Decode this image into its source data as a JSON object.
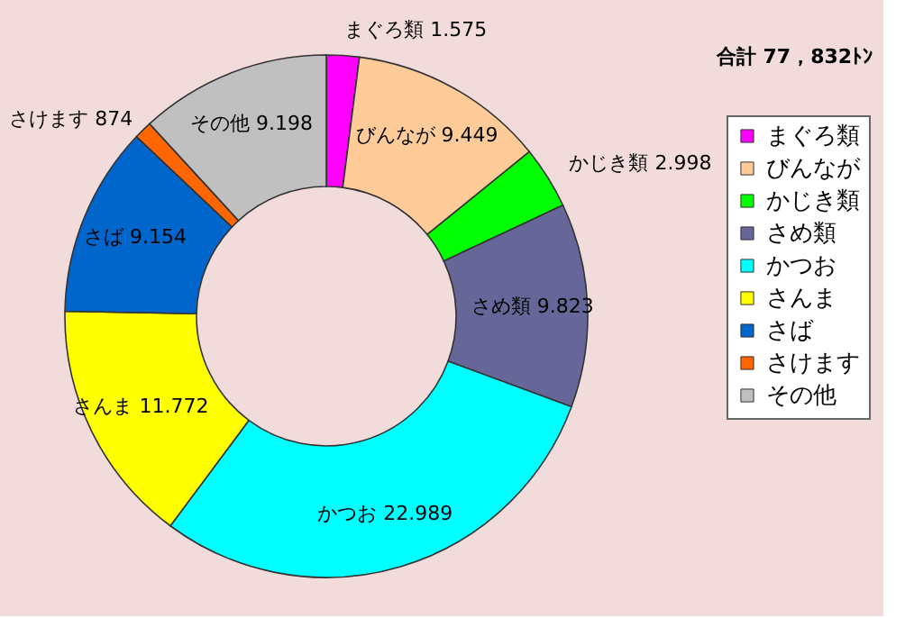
{
  "chart_data": {
    "type": "donut",
    "categories": [
      "まぐろ類",
      "びんなが",
      "かじき類",
      "さめ類",
      "かつお",
      "さんま",
      "さば",
      "さけます",
      "その他"
    ],
    "values": [
      1575,
      9449,
      2998,
      9823,
      22989,
      11772,
      9154,
      874,
      9198
    ],
    "value_labels": [
      "1.575",
      "9.449",
      "2.998",
      "9.823",
      "22.989",
      "11.772",
      "9.154",
      "874",
      "9.198"
    ],
    "colors": [
      "#ff00ff",
      "#ffcc99",
      "#00ff00",
      "#666699",
      "#00ffff",
      "#ffff00",
      "#0066cc",
      "#ff6600",
      "#c0c0c0"
    ],
    "annotations": [
      "合計 77，832ﾄﾝ"
    ],
    "legend": "right"
  }
}
